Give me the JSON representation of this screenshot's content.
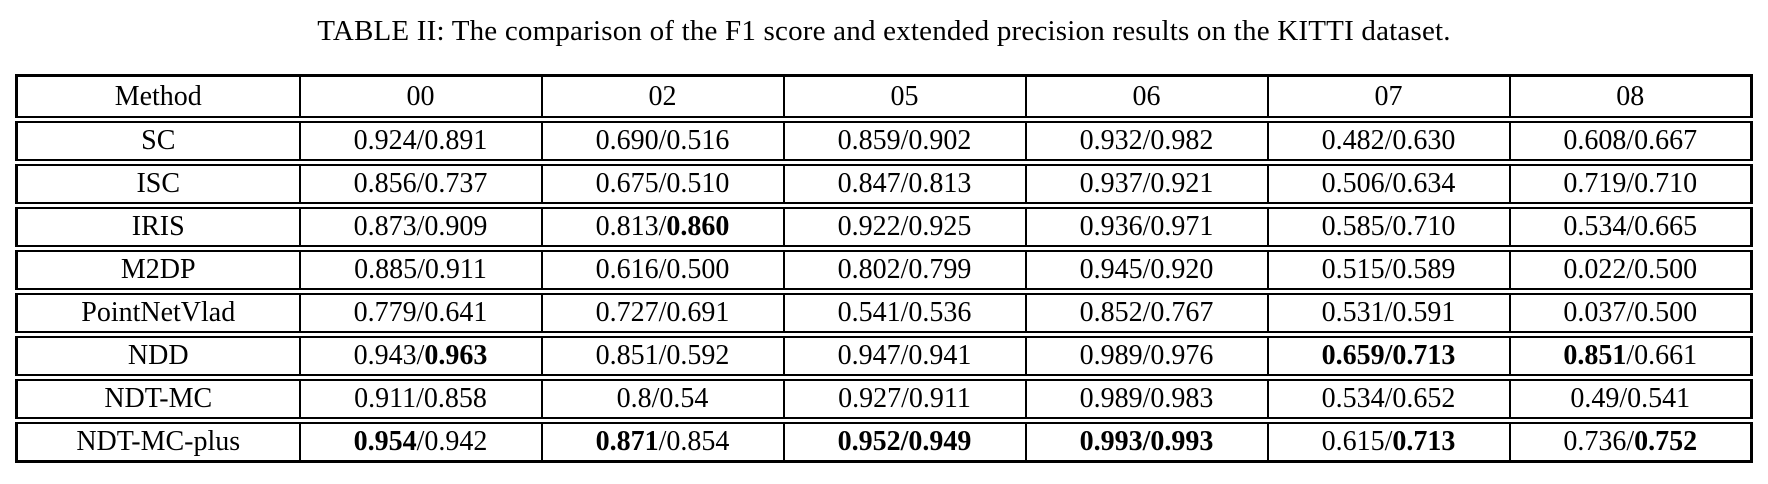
{
  "title": "TABLE II: The comparison of the F1 score and extended precision results on the KITTI dataset.",
  "table": {
    "sep": "/",
    "header": [
      "Method",
      "00",
      "02",
      "05",
      "06",
      "07",
      "08"
    ],
    "rows": [
      {
        "method": "SC",
        "cells": [
          {
            "f1": "0.924",
            "ep": "0.891",
            "f1_bold": false,
            "ep_bold": false
          },
          {
            "f1": "0.690",
            "ep": "0.516",
            "f1_bold": false,
            "ep_bold": false
          },
          {
            "f1": "0.859",
            "ep": "0.902",
            "f1_bold": false,
            "ep_bold": false
          },
          {
            "f1": "0.932",
            "ep": "0.982",
            "f1_bold": false,
            "ep_bold": false
          },
          {
            "f1": "0.482",
            "ep": "0.630",
            "f1_bold": false,
            "ep_bold": false
          },
          {
            "f1": "0.608",
            "ep": "0.667",
            "f1_bold": false,
            "ep_bold": false
          }
        ]
      },
      {
        "method": "ISC",
        "cells": [
          {
            "f1": "0.856",
            "ep": "0.737",
            "f1_bold": false,
            "ep_bold": false
          },
          {
            "f1": "0.675",
            "ep": "0.510",
            "f1_bold": false,
            "ep_bold": false
          },
          {
            "f1": "0.847",
            "ep": "0.813",
            "f1_bold": false,
            "ep_bold": false
          },
          {
            "f1": "0.937",
            "ep": "0.921",
            "f1_bold": false,
            "ep_bold": false
          },
          {
            "f1": "0.506",
            "ep": "0.634",
            "f1_bold": false,
            "ep_bold": false
          },
          {
            "f1": "0.719",
            "ep": "0.710",
            "f1_bold": false,
            "ep_bold": false
          }
        ]
      },
      {
        "method": "IRIS",
        "cells": [
          {
            "f1": "0.873",
            "ep": "0.909",
            "f1_bold": false,
            "ep_bold": false
          },
          {
            "f1": "0.813",
            "ep": "0.860",
            "f1_bold": false,
            "ep_bold": true
          },
          {
            "f1": "0.922",
            "ep": "0.925",
            "f1_bold": false,
            "ep_bold": false
          },
          {
            "f1": "0.936",
            "ep": "0.971",
            "f1_bold": false,
            "ep_bold": false
          },
          {
            "f1": "0.585",
            "ep": "0.710",
            "f1_bold": false,
            "ep_bold": false
          },
          {
            "f1": "0.534",
            "ep": "0.665",
            "f1_bold": false,
            "ep_bold": false
          }
        ]
      },
      {
        "method": "M2DP",
        "cells": [
          {
            "f1": "0.885",
            "ep": "0.911",
            "f1_bold": false,
            "ep_bold": false
          },
          {
            "f1": "0.616",
            "ep": "0.500",
            "f1_bold": false,
            "ep_bold": false
          },
          {
            "f1": "0.802",
            "ep": "0.799",
            "f1_bold": false,
            "ep_bold": false
          },
          {
            "f1": "0.945",
            "ep": "0.920",
            "f1_bold": false,
            "ep_bold": false
          },
          {
            "f1": "0.515",
            "ep": "0.589",
            "f1_bold": false,
            "ep_bold": false
          },
          {
            "f1": "0.022",
            "ep": "0.500",
            "f1_bold": false,
            "ep_bold": false
          }
        ]
      },
      {
        "method": "PointNetVlad",
        "cells": [
          {
            "f1": "0.779",
            "ep": "0.641",
            "f1_bold": false,
            "ep_bold": false
          },
          {
            "f1": "0.727",
            "ep": "0.691",
            "f1_bold": false,
            "ep_bold": false
          },
          {
            "f1": "0.541",
            "ep": "0.536",
            "f1_bold": false,
            "ep_bold": false
          },
          {
            "f1": "0.852",
            "ep": "0.767",
            "f1_bold": false,
            "ep_bold": false
          },
          {
            "f1": "0.531",
            "ep": "0.591",
            "f1_bold": false,
            "ep_bold": false
          },
          {
            "f1": "0.037",
            "ep": "0.500",
            "f1_bold": false,
            "ep_bold": false
          }
        ]
      },
      {
        "method": "NDD",
        "cells": [
          {
            "f1": "0.943",
            "ep": "0.963",
            "f1_bold": false,
            "ep_bold": true
          },
          {
            "f1": "0.851",
            "ep": "0.592",
            "f1_bold": false,
            "ep_bold": false
          },
          {
            "f1": "0.947",
            "ep": "0.941",
            "f1_bold": false,
            "ep_bold": false
          },
          {
            "f1": "0.989",
            "ep": "0.976",
            "f1_bold": false,
            "ep_bold": false
          },
          {
            "f1": "0.659",
            "ep": "0.713",
            "f1_bold": true,
            "ep_bold": true
          },
          {
            "f1": "0.851",
            "ep": "0.661",
            "f1_bold": true,
            "ep_bold": false
          }
        ]
      },
      {
        "method": "NDT-MC",
        "cells": [
          {
            "f1": "0.911",
            "ep": "0.858",
            "f1_bold": false,
            "ep_bold": false
          },
          {
            "f1": "0.8",
            "ep": "0.54",
            "f1_bold": false,
            "ep_bold": false
          },
          {
            "f1": "0.927",
            "ep": "0.911",
            "f1_bold": false,
            "ep_bold": false
          },
          {
            "f1": "0.989",
            "ep": "0.983",
            "f1_bold": false,
            "ep_bold": false
          },
          {
            "f1": "0.534",
            "ep": "0.652",
            "f1_bold": false,
            "ep_bold": false
          },
          {
            "f1": "0.49",
            "ep": "0.541",
            "f1_bold": false,
            "ep_bold": false
          }
        ]
      },
      {
        "method": "NDT-MC-plus",
        "cells": [
          {
            "f1": "0.954",
            "ep": "0.942",
            "f1_bold": true,
            "ep_bold": false
          },
          {
            "f1": "0.871",
            "ep": "0.854",
            "f1_bold": true,
            "ep_bold": false
          },
          {
            "f1": "0.952",
            "ep": "0.949",
            "f1_bold": true,
            "ep_bold": true
          },
          {
            "f1": "0.993",
            "ep": "0.993",
            "f1_bold": true,
            "ep_bold": true
          },
          {
            "f1": "0.615",
            "ep": "0.713",
            "f1_bold": false,
            "ep_bold": true
          },
          {
            "f1": "0.736",
            "ep": "0.752",
            "f1_bold": false,
            "ep_bold": true
          }
        ]
      }
    ]
  }
}
